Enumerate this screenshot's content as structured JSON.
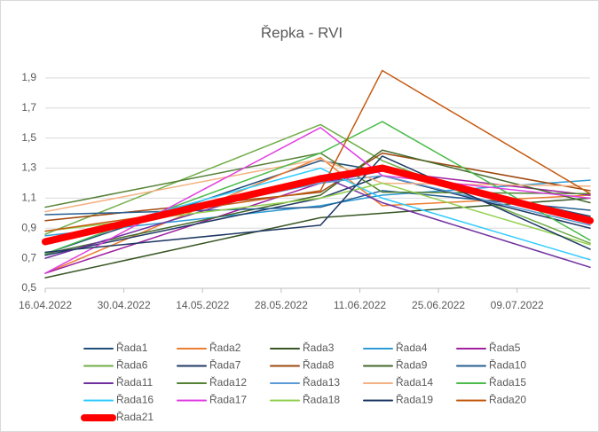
{
  "chart_data": {
    "type": "line",
    "title": "Řepka - RVI",
    "x": [
      "2022-04-16",
      "2022-06-04",
      "2022-06-15",
      "2022-07-22"
    ],
    "xlim": [
      "2022-04-16",
      "2022-07-22"
    ],
    "xticks": [
      {
        "value": "2022-04-16",
        "label": "16.04.2022"
      },
      {
        "value": "2022-04-30",
        "label": "30.04.2022"
      },
      {
        "value": "2022-05-14",
        "label": "14.05.2022"
      },
      {
        "value": "2022-05-28",
        "label": "28.05.2022"
      },
      {
        "value": "2022-06-11",
        "label": "11.06.2022"
      },
      {
        "value": "2022-06-25",
        "label": "25.06.2022"
      },
      {
        "value": "2022-07-09",
        "label": "09.07.2022"
      }
    ],
    "ylim": [
      0.5,
      2.0
    ],
    "yticks": [
      {
        "value": 0.5,
        "label": "0,5"
      },
      {
        "value": 0.7,
        "label": "0,7"
      },
      {
        "value": 0.9,
        "label": "0,9"
      },
      {
        "value": 1.1,
        "label": "1,1"
      },
      {
        "value": 1.3,
        "label": "1,3"
      },
      {
        "value": 1.5,
        "label": "1,5"
      },
      {
        "value": 1.7,
        "label": "1,7"
      },
      {
        "value": 1.9,
        "label": "1,9"
      }
    ],
    "grid": true,
    "legend": "bottom",
    "series": [
      {
        "name": "Řada1",
        "color": "#1f4e79",
        "values": [
          0.73,
          1.35,
          1.28,
          0.98
        ]
      },
      {
        "name": "Řada2",
        "color": "#ed7d31",
        "values": [
          0.6,
          1.37,
          1.05,
          1.12
        ]
      },
      {
        "name": "Řada3",
        "color": "#375623",
        "values": [
          0.57,
          0.97,
          1.0,
          1.1
        ]
      },
      {
        "name": "Řada4",
        "color": "#2e9bd5",
        "values": [
          0.85,
          1.05,
          1.12,
          1.22
        ]
      },
      {
        "name": "Řada5",
        "color": "#a020a0",
        "values": [
          0.6,
          1.2,
          1.28,
          1.12
        ]
      },
      {
        "name": "Řada6",
        "color": "#70ad47",
        "values": [
          0.86,
          1.59,
          1.35,
          0.8
        ]
      },
      {
        "name": "Řada7",
        "color": "#203864",
        "values": [
          0.72,
          1.1,
          1.25,
          0.9
        ]
      },
      {
        "name": "Řada8",
        "color": "#9e480e",
        "values": [
          0.95,
          1.14,
          1.4,
          1.15
        ]
      },
      {
        "name": "Řada9",
        "color": "#43682b",
        "values": [
          0.73,
          1.12,
          1.42,
          1.07
        ]
      },
      {
        "name": "Řada10",
        "color": "#255e91",
        "values": [
          0.99,
          1.04,
          1.15,
          1.02
        ]
      },
      {
        "name": "Řada11",
        "color": "#7030a0",
        "values": [
          0.7,
          1.25,
          1.07,
          0.64
        ]
      },
      {
        "name": "Řada12",
        "color": "#548235",
        "values": [
          1.04,
          1.4,
          1.14,
          1.13
        ]
      },
      {
        "name": "Řada13",
        "color": "#5b9bd5",
        "values": [
          0.83,
          1.2,
          1.25,
          0.92
        ]
      },
      {
        "name": "Řada14",
        "color": "#f4b183",
        "values": [
          1.01,
          1.36,
          1.2,
          1.18
        ]
      },
      {
        "name": "Řada15",
        "color": "#4cbb4c",
        "values": [
          0.73,
          1.4,
          1.61,
          0.82
        ]
      },
      {
        "name": "Řada16",
        "color": "#33ccff",
        "values": [
          0.8,
          1.3,
          1.1,
          0.69
        ]
      },
      {
        "name": "Řada17",
        "color": "#e040e0",
        "values": [
          0.6,
          1.57,
          1.25,
          1.1
        ]
      },
      {
        "name": "Řada18",
        "color": "#92d050",
        "values": [
          0.88,
          1.1,
          1.2,
          0.79
        ]
      },
      {
        "name": "Řada19",
        "color": "#1f3864",
        "values": [
          0.74,
          0.92,
          1.38,
          0.76
        ]
      },
      {
        "name": "Řada20",
        "color": "#c55a11",
        "values": [
          0.88,
          1.15,
          1.95,
          1.13
        ]
      },
      {
        "name": "Řada21",
        "color": "#ff0000",
        "line_width": 8,
        "values": [
          0.81,
          1.23,
          1.3,
          0.95
        ]
      }
    ]
  }
}
